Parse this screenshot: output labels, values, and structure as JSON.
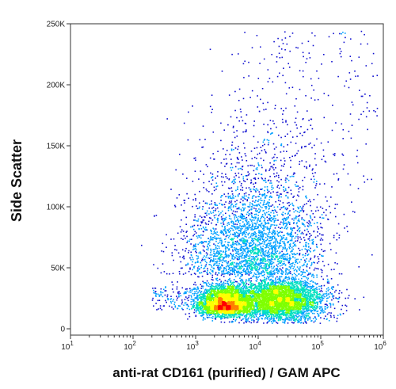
{
  "chart_data": {
    "type": "scatter",
    "xlabel": "anti-rat CD161 (purified) / GAM APC",
    "ylabel": "Side Scatter",
    "x_scale": "log",
    "xlim": [
      10,
      1000000
    ],
    "ylim": [
      0,
      250000
    ],
    "x_ticks": [
      {
        "value": 10,
        "base": "10",
        "exp": "1"
      },
      {
        "value": 100,
        "base": "10",
        "exp": "2"
      },
      {
        "value": 1000,
        "base": "10",
        "exp": "3"
      },
      {
        "value": 10000,
        "base": "10",
        "exp": "4"
      },
      {
        "value": 100000,
        "base": "10",
        "exp": "5"
      },
      {
        "value": 1000000,
        "base": "10",
        "exp": "6"
      }
    ],
    "y_ticks": [
      {
        "value": 0,
        "label": "0"
      },
      {
        "value": 50000,
        "label": "50K"
      },
      {
        "value": 100000,
        "label": "100K"
      },
      {
        "value": 150000,
        "label": "150K"
      },
      {
        "value": 200000,
        "label": "200K"
      },
      {
        "value": 250000,
        "label": "250K"
      }
    ],
    "grid": false,
    "legend": "none",
    "density_colors": [
      "#1010d0",
      "#00a0ff",
      "#00e0c0",
      "#7fff00",
      "#ffff00",
      "#ff8000",
      "#ff0000"
    ],
    "populations": [
      {
        "center_x": 3000,
        "center_y": 22000,
        "relative_density": 1.0
      },
      {
        "center_x": 30000,
        "center_y": 25000,
        "relative_density": 0.7
      }
    ]
  }
}
